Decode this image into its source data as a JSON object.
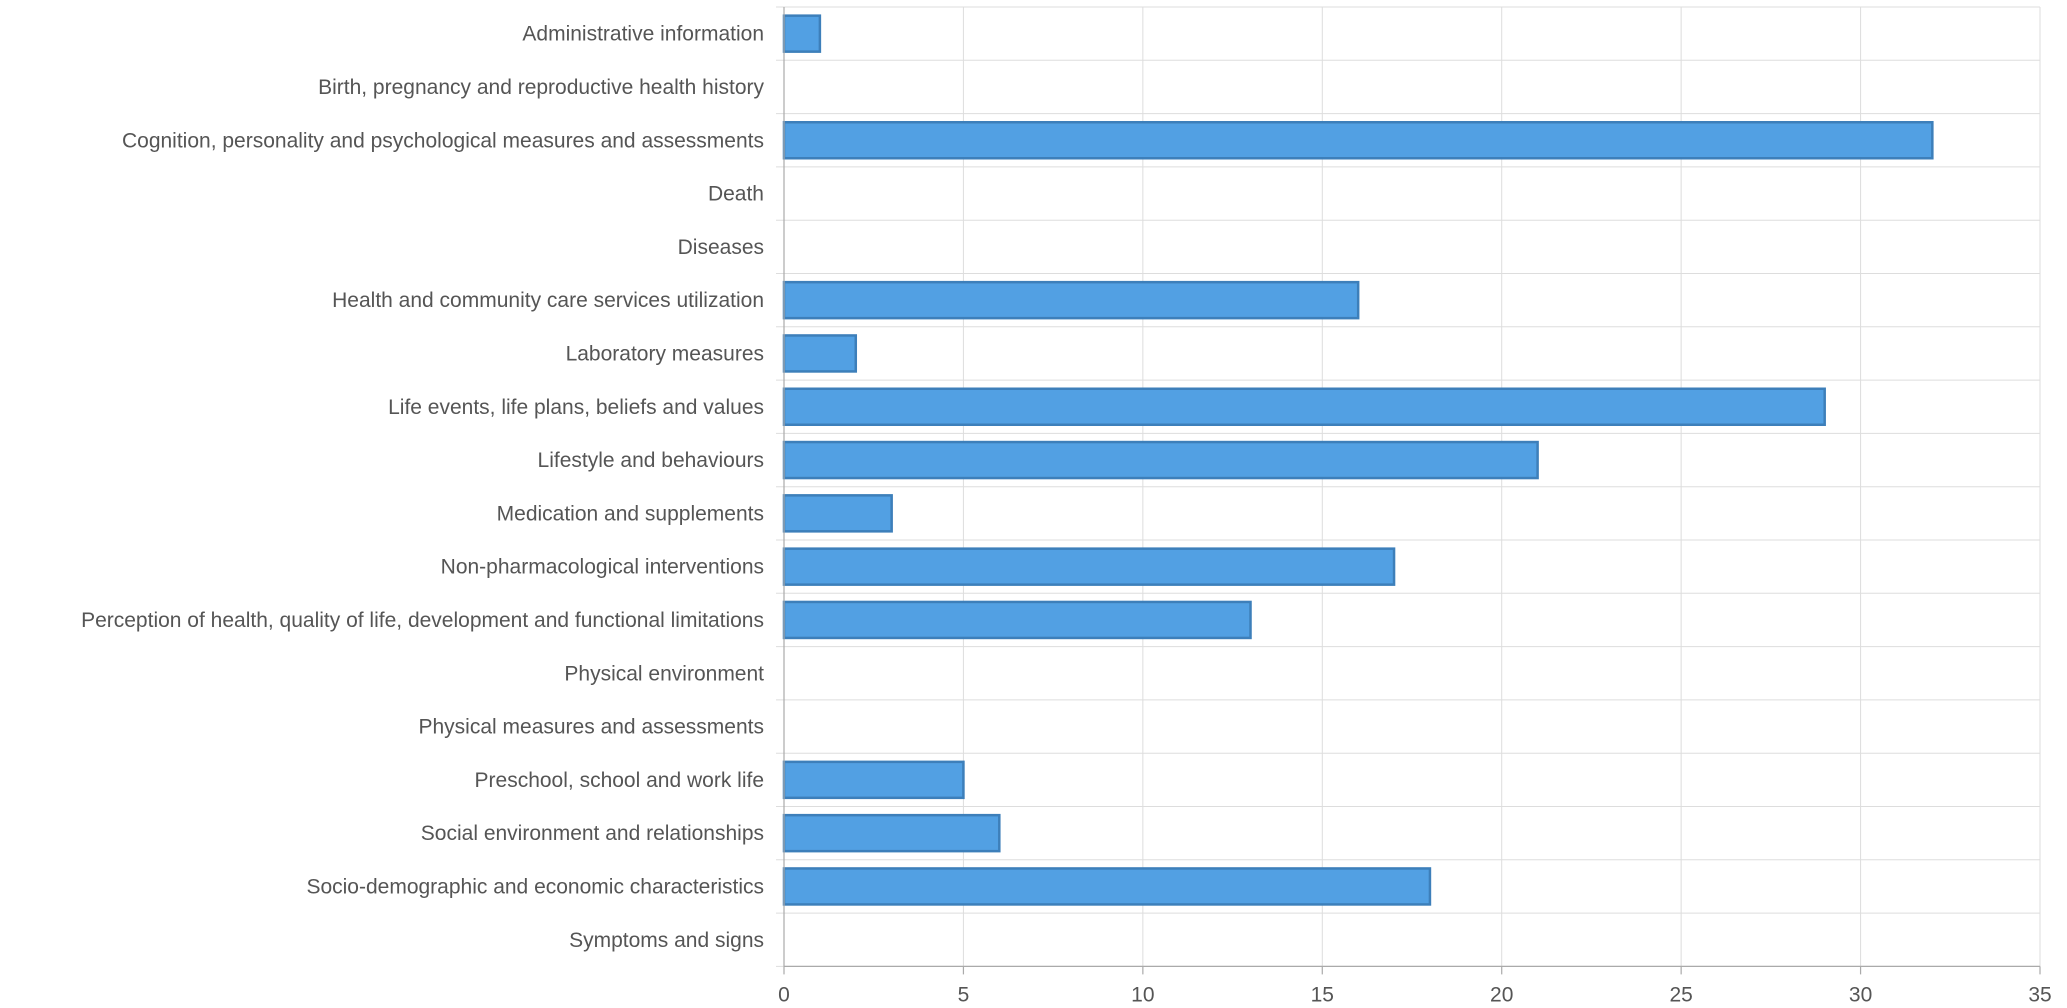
{
  "chart_data": {
    "type": "bar",
    "orientation": "horizontal",
    "title": "",
    "xlabel": "",
    "ylabel": "",
    "categories": [
      "Administrative information",
      "Birth, pregnancy and reproductive health history",
      "Cognition, personality and psychological measures and assessments",
      "Death",
      "Diseases",
      "Health and community care services utilization",
      "Laboratory measures",
      "Life events, life plans, beliefs and values",
      "Lifestyle and behaviours",
      "Medication and supplements",
      "Non-pharmacological interventions",
      "Perception of health, quality of life, development and functional limitations",
      "Physical environment",
      "Physical measures and assessments",
      "Preschool, school and work life",
      "Social environment and relationships",
      "Socio-demographic and economic characteristics",
      "Symptoms and signs"
    ],
    "values": [
      1,
      0,
      32,
      0,
      0,
      16,
      2,
      29,
      21,
      3,
      17,
      13,
      0,
      0,
      5,
      6,
      18,
      0
    ],
    "xlim": [
      0,
      35
    ],
    "xticks": [
      "0",
      "5",
      "10",
      "15",
      "20",
      "25",
      "30",
      "35"
    ],
    "grid": true,
    "legend": "none",
    "colors": {
      "bar_fill": "#52a0e3",
      "bar_stroke": "#3d7fba"
    }
  }
}
